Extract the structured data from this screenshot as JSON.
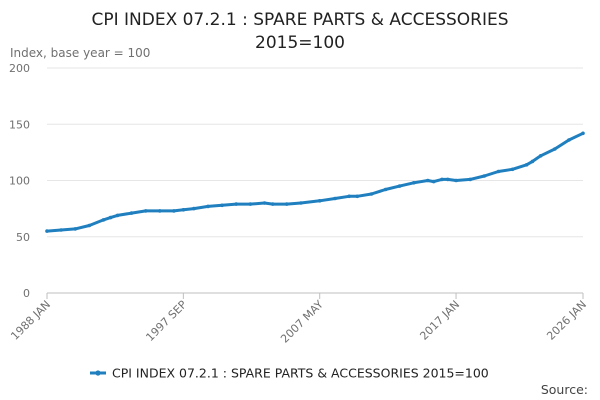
{
  "chart_data": {
    "type": "line",
    "title_lines": [
      "CPI INDEX 07.2.1 : SPARE PARTS & ACCESSORIES",
      "2015=100"
    ],
    "ylabel": "Index, base year = 100",
    "xlabel": "",
    "ylim": [
      0,
      200
    ],
    "y_ticks": [
      "0",
      "50",
      "100",
      "150",
      "200"
    ],
    "x_range": [
      "1988-01",
      "2026-01"
    ],
    "x_ticks": [
      {
        "label": "1988 JAN",
        "date": "1988-01"
      },
      {
        "label": "1997 SEP",
        "date": "1997-09"
      },
      {
        "label": "2007 MAY",
        "date": "2007-05"
      },
      {
        "label": "2017 JAN",
        "date": "2017-01"
      },
      {
        "label": "2026 JAN",
        "date": "2026-01"
      }
    ],
    "grid": true,
    "legend_position": "bottom",
    "series": [
      {
        "name": "CPI INDEX 07.2.1 : SPARE PARTS & ACCESSORIES 2015=100",
        "color": "#1f7fbf",
        "points": [
          [
            "1988-01",
            55
          ],
          [
            "1989-01",
            56
          ],
          [
            "1990-01",
            57
          ],
          [
            "1991-01",
            60
          ],
          [
            "1992-01",
            65
          ],
          [
            "1992-07",
            67
          ],
          [
            "1993-01",
            69
          ],
          [
            "1994-01",
            71
          ],
          [
            "1995-01",
            73
          ],
          [
            "1996-01",
            73
          ],
          [
            "1997-01",
            73
          ],
          [
            "1997-09",
            74
          ],
          [
            "1998-06",
            75
          ],
          [
            "1999-06",
            77
          ],
          [
            "2000-06",
            78
          ],
          [
            "2001-06",
            79
          ],
          [
            "2002-06",
            79
          ],
          [
            "2003-06",
            80
          ],
          [
            "2004-01",
            79
          ],
          [
            "2005-01",
            79
          ],
          [
            "2006-01",
            80
          ],
          [
            "2007-05",
            82
          ],
          [
            "2008-06",
            84
          ],
          [
            "2009-06",
            86
          ],
          [
            "2010-01",
            86
          ],
          [
            "2011-01",
            88
          ],
          [
            "2012-01",
            92
          ],
          [
            "2013-01",
            95
          ],
          [
            "2014-01",
            98
          ],
          [
            "2015-01",
            100
          ],
          [
            "2015-06",
            99
          ],
          [
            "2016-01",
            101
          ],
          [
            "2016-06",
            101
          ],
          [
            "2017-01",
            100
          ],
          [
            "2018-01",
            101
          ],
          [
            "2019-01",
            104
          ],
          [
            "2020-01",
            108
          ],
          [
            "2021-01",
            110
          ],
          [
            "2022-01",
            114
          ],
          [
            "2022-06",
            117
          ],
          [
            "2023-01",
            122
          ],
          [
            "2024-01",
            128
          ],
          [
            "2025-01",
            136
          ],
          [
            "2026-01",
            142
          ]
        ]
      }
    ]
  },
  "footer": {
    "source_label": "Source:"
  }
}
